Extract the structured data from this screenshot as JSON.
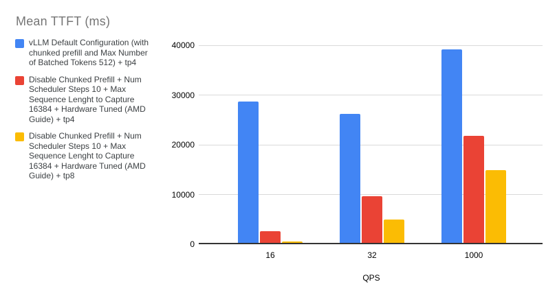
{
  "title": "Mean TTFT (ms)",
  "colors": {
    "blue": "#4285F4",
    "red": "#EA4335",
    "yellow": "#FBBC04",
    "title_text": "#757575",
    "legend_text": "#3c4043",
    "gridline": "#d9d9d9",
    "axis_line": "#333333",
    "tick_text": "#000000"
  },
  "legend": {
    "items": [
      {
        "color": "#4285F4",
        "lines": [
          "vLLM Default Configuration (with",
          "chunked prefill and Max Number",
          "of Batched Tokens 512) + tp4"
        ]
      },
      {
        "color": "#EA4335",
        "lines": [
          "Disable Chunked Prefill + Num",
          "Scheduler Steps 10 + Max",
          "Sequence Lenght to Capture",
          "16384 + Hardware Tuned (AMD",
          "Guide) + tp4"
        ]
      },
      {
        "color": "#FBBC04",
        "lines": [
          "Disable Chunked Prefill + Num",
          "Scheduler Steps 10 + Max",
          "Sequence Lenght to Capture",
          "16384 + Hardware Tuned (AMD",
          "Guide) + tp8"
        ]
      }
    ]
  },
  "chart_data": {
    "type": "bar",
    "title": "Mean TTFT (ms)",
    "xlabel": "QPS",
    "ylabel": "",
    "categories": [
      "16",
      "32",
      "1000"
    ],
    "series": [
      {
        "name": "vLLM Default Configuration (with chunked prefill and Max Number of Batched Tokens 512) + tp4",
        "color": "#4285F4",
        "values": [
          28400,
          25950,
          38950
        ]
      },
      {
        "name": "Disable Chunked Prefill + Num Scheduler Steps 10 + Max Sequence Lenght to Capture 16384 + Hardware Tuned (AMD Guide) + tp4",
        "color": "#EA4335",
        "values": [
          2400,
          9400,
          21550
        ]
      },
      {
        "name": "Disable Chunked Prefill + Num Scheduler Steps 10 + Max Sequence Lenght to Capture 16384 + Hardware Tuned (AMD Guide) + tp8",
        "color": "#FBBC04",
        "values": [
          250,
          4700,
          14650
        ]
      }
    ],
    "ylim": [
      0,
      40000
    ],
    "y_ticks": [
      0,
      10000,
      20000,
      30000,
      40000
    ],
    "grid": true,
    "legend_position": "left"
  }
}
